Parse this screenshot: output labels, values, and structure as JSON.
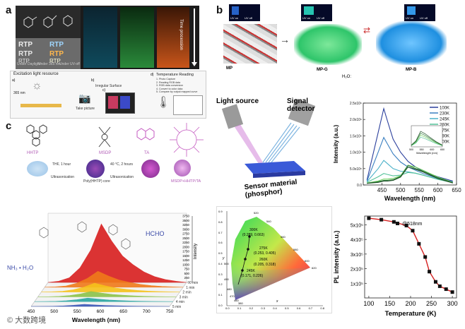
{
  "panel_labels": {
    "a": "a",
    "b": "b",
    "c": "c"
  },
  "panel_a": {
    "photo_labels": [
      "RTP",
      "RTP",
      "RTP",
      "RTP",
      "RTP",
      "RTP"
    ],
    "photo_captions": [
      "Under Daylight",
      "Under 365 nm",
      "Under UV-off"
    ],
    "time_label": "Time procession",
    "workflow_title": "Excitation light resource",
    "uv_label": "365 nm",
    "step_labels": [
      "Irregular Surface",
      "Take picture",
      "Temperature Reading"
    ],
    "reading_steps": [
      "1. Photo Capture",
      "2. Reading RGB data",
      "3. RGB data conversion",
      "4. Convert to color data",
      "5. Compare by output mapped curve"
    ],
    "step_numbers": [
      "a)",
      "b)",
      "c)",
      "d)"
    ]
  },
  "panel_b": {
    "uv_buttons": [
      "UV on",
      "UV off",
      "UV on",
      "UV off",
      "UV on",
      "UV off"
    ],
    "crystal_labels": [
      "MP",
      "MP-G",
      "MP-B"
    ],
    "water_label": "H₂O:",
    "diagram_labels": [
      "Light source",
      "Signal detector",
      "Sensor material (phosphor)"
    ],
    "cie": {
      "points": [
        {
          "label": "300K",
          "coord": "(0.289, 0.663)"
        },
        {
          "label": "275K",
          "coord": "(0.253, 0.405)"
        },
        {
          "label": "260K",
          "coord": "(0.205, 0.318)"
        },
        {
          "label": "245K",
          "coord": "(0.171, 0.226)"
        }
      ],
      "wavelength_ticks": [
        "520",
        "540",
        "560",
        "580",
        "600",
        "620",
        "500",
        "490",
        "480",
        "470",
        "460",
        "380"
      ],
      "x_ticks": [
        "0.0",
        "0.1",
        "0.2",
        "0.3",
        "0.4",
        "0.5",
        "0.6",
        "0.7",
        "0.8"
      ],
      "y_ticks": [
        "0.9",
        "0.8",
        "0.7",
        "0.6",
        "0.5",
        "0.4",
        "0.3",
        "0.2",
        "0.1",
        "0.0"
      ],
      "xlabel": "x",
      "ylabel": "y"
    }
  },
  "panel_c": {
    "molecule_labels": [
      "HHTP",
      "MSDP",
      "TA",
      "MSDP+HHTP/TA"
    ],
    "process_labels": [
      "THF, 1 hour",
      "Ultrasonication",
      "40 °C, 2 hours",
      "Ultrasonication"
    ],
    "product_label": "Poly(HHTP) core",
    "hcho_label": "HCHO",
    "nh3_label": "NH₃ • H₂O",
    "time_labels": [
      "0 min",
      "1 min",
      "2 min",
      "3 min",
      "4 min",
      "5 min"
    ]
  },
  "watermark": "© 大数跨境",
  "chart_data": [
    {
      "id": "spectra",
      "type": "line",
      "title": "",
      "xlabel": "Wavelength (nm)",
      "ylabel": "Intensity (a.u.)",
      "xlim": [
        400,
        650
      ],
      "ylim": [
        0,
        2.5
      ],
      "y_exponent": "x10⁶",
      "x_ticks": [
        "450",
        "500",
        "550",
        "600",
        "650"
      ],
      "y_ticks": [
        "0.0",
        "5.0x10⁵",
        "1.0x10⁶",
        "1.5x10⁶",
        "2.0x10⁶",
        "2.5x10⁶"
      ],
      "series": [
        {
          "name": "100K",
          "color": "#2b3f9c",
          "x": [
            410,
            440,
            455,
            465,
            480,
            500,
            520,
            540,
            560,
            600,
            640
          ],
          "values": [
            0.15,
            1.6,
            2.33,
            1.95,
            1.4,
            1.0,
            0.72,
            0.55,
            0.42,
            0.25,
            0.12
          ]
        },
        {
          "name": "230K",
          "color": "#3a7fc0",
          "x": [
            410,
            440,
            455,
            465,
            480,
            500,
            520,
            540,
            560,
            600,
            640
          ],
          "values": [
            0.12,
            1.0,
            1.45,
            1.25,
            0.95,
            0.7,
            0.55,
            0.45,
            0.35,
            0.2,
            0.1
          ]
        },
        {
          "name": "245K",
          "color": "#4ab0c8",
          "x": [
            410,
            440,
            455,
            465,
            480,
            500,
            520,
            540,
            560,
            600,
            640
          ],
          "values": [
            0.1,
            0.5,
            0.75,
            0.65,
            0.5,
            0.42,
            0.4,
            0.36,
            0.3,
            0.18,
            0.08
          ]
        },
        {
          "name": "260K",
          "color": "#55c29a",
          "x": [
            410,
            440,
            455,
            465,
            480,
            500,
            520,
            540,
            560,
            600,
            640
          ],
          "values": [
            0.08,
            0.25,
            0.35,
            0.32,
            0.28,
            0.3,
            0.38,
            0.36,
            0.3,
            0.17,
            0.07
          ]
        },
        {
          "name": "275K",
          "color": "#6fcf5f",
          "x": [
            410,
            440,
            455,
            465,
            480,
            500,
            520,
            540,
            560,
            600,
            640
          ],
          "values": [
            0.06,
            0.12,
            0.18,
            0.18,
            0.2,
            0.28,
            0.6,
            0.55,
            0.45,
            0.24,
            0.08
          ]
        },
        {
          "name": "290K",
          "color": "#2f7f3a",
          "x": [
            410,
            440,
            455,
            465,
            480,
            500,
            520,
            540,
            560,
            600,
            640
          ],
          "values": [
            0.05,
            0.1,
            0.14,
            0.14,
            0.16,
            0.26,
            0.6,
            0.5,
            0.42,
            0.22,
            0.07
          ]
        },
        {
          "name": "300K",
          "color": "#1f4f28",
          "x": [
            410,
            440,
            455,
            465,
            480,
            500,
            520,
            540,
            560,
            600,
            640
          ],
          "values": [
            0.05,
            0.08,
            0.12,
            0.12,
            0.14,
            0.24,
            0.55,
            0.48,
            0.4,
            0.2,
            0.06
          ]
        }
      ],
      "inset": {
        "xlabel": "Wavelength (nm)",
        "x_ticks": [
          "500",
          "550",
          "600",
          "650"
        ]
      }
    },
    {
      "id": "pl_vs_temp",
      "type": "scatter",
      "xlabel": "Temperature (K)",
      "ylabel": "PL intensity (a.u.)",
      "xlim": [
        90,
        310
      ],
      "ylim": [
        0,
        5.6
      ],
      "x_ticks": [
        "100",
        "150",
        "200",
        "250",
        "300"
      ],
      "y_ticks": [
        "1x10⁵",
        "2x10⁵",
        "3x10⁵",
        "4x10⁵",
        "5x10⁵"
      ],
      "legend": "@518nm",
      "x": [
        100,
        130,
        160,
        190,
        205,
        220,
        235,
        245,
        260,
        270,
        285,
        300
      ],
      "values": [
        5.45,
        5.35,
        5.2,
        4.95,
        4.6,
        3.7,
        2.8,
        1.8,
        1.1,
        0.8,
        0.6,
        0.4
      ]
    },
    {
      "id": "waterfall",
      "type": "line",
      "xlabel": "Wavelength (nm)",
      "ylabel": "Intensity",
      "x_ticks": [
        "450",
        "500",
        "550",
        "600",
        "650",
        "700",
        "750"
      ],
      "z_ticks": [
        "0",
        "250",
        "500",
        "750",
        "1000",
        "1250",
        "1500",
        "1750",
        "2000",
        "2250",
        "2500",
        "2750",
        "3000",
        "3250",
        "3500",
        "3750"
      ],
      "series": [
        {
          "name": "0 min",
          "color": "#d81e1e",
          "peak": 3300
        },
        {
          "name": "1 min",
          "color": "#f07a1a",
          "peak": 900
        },
        {
          "name": "2 min",
          "color": "#f6c21a",
          "peak": 500
        },
        {
          "name": "3 min",
          "color": "#8bc34a",
          "peak": 300
        },
        {
          "name": "4 min",
          "color": "#2aa5a0",
          "peak": 200
        },
        {
          "name": "5 min",
          "color": "#3a56b8",
          "peak": 120
        }
      ]
    }
  ]
}
